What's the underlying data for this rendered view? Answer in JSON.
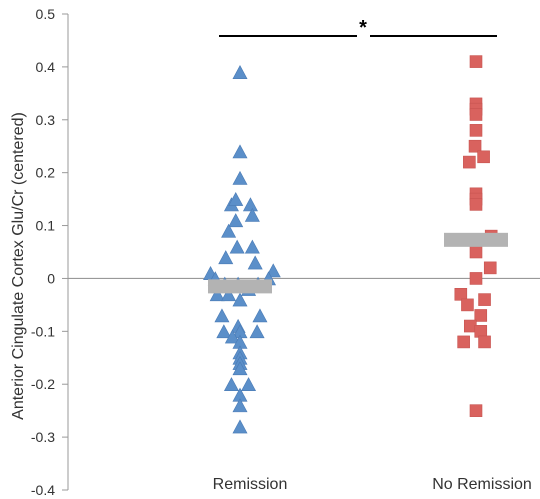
{
  "chart_data": {
    "type": "scatter",
    "ylabel": "Anterior Cingulate Cortex Glu/Cr (centered)",
    "ylim": [
      -0.4,
      0.5
    ],
    "yticks": [
      -0.4,
      -0.3,
      -0.2,
      -0.1,
      0,
      0.1,
      0.2,
      0.3,
      0.4,
      0.5
    ],
    "ytick_labels": [
      "-0.4",
      "-0.3",
      "-0.2",
      "-0.1",
      "0",
      "0.1",
      "0.2",
      "0.3",
      "0.4",
      "0.5"
    ],
    "categories": [
      "Remission",
      "No Remission"
    ],
    "significance": {
      "label": "*",
      "between": [
        "Remission",
        "No Remission"
      ]
    },
    "colors": {
      "remission": "#5b8fc9",
      "no_remission": "#d9625e",
      "mean_bar": "#b3b3b3",
      "axis": "#999999"
    },
    "series": [
      {
        "category": "Remission",
        "marker": "triangle",
        "mean": -0.015,
        "points": [
          {
            "j": 0,
            "y": 0.39
          },
          {
            "j": 0,
            "y": 0.24
          },
          {
            "j": 0,
            "y": 0.19
          },
          {
            "j": -0.9,
            "y": 0.14
          },
          {
            "j": -0.45,
            "y": 0.15
          },
          {
            "j": 1.1,
            "y": 0.14
          },
          {
            "j": 1.3,
            "y": 0.12
          },
          {
            "j": -0.45,
            "y": 0.11
          },
          {
            "j": -1.2,
            "y": 0.09
          },
          {
            "j": -0.3,
            "y": 0.06
          },
          {
            "j": 1.3,
            "y": 0.06
          },
          {
            "j": -1.5,
            "y": 0.04
          },
          {
            "j": 1.6,
            "y": 0.03
          },
          {
            "j": -3.1,
            "y": 0.01
          },
          {
            "j": 3.5,
            "y": 0.015
          },
          {
            "j": -2.6,
            "y": 0.0
          },
          {
            "j": -1.6,
            "y": -0.01
          },
          {
            "j": -0.2,
            "y": -0.01
          },
          {
            "j": 1.9,
            "y": -0.01
          },
          {
            "j": 3.0,
            "y": 0.0
          },
          {
            "j": 0.9,
            "y": -0.02
          },
          {
            "j": -2.4,
            "y": -0.03
          },
          {
            "j": -1.2,
            "y": -0.03
          },
          {
            "j": 0,
            "y": -0.04
          },
          {
            "j": -1.9,
            "y": -0.07
          },
          {
            "j": 2.1,
            "y": -0.07
          },
          {
            "j": -0.2,
            "y": -0.09
          },
          {
            "j": -1.7,
            "y": -0.1
          },
          {
            "j": 0,
            "y": -0.1
          },
          {
            "j": 1.8,
            "y": -0.1
          },
          {
            "j": -0.8,
            "y": -0.11
          },
          {
            "j": 0,
            "y": -0.12
          },
          {
            "j": 0,
            "y": -0.14
          },
          {
            "j": 0,
            "y": -0.15
          },
          {
            "j": 0,
            "y": -0.16
          },
          {
            "j": 0,
            "y": -0.17
          },
          {
            "j": -0.9,
            "y": -0.2
          },
          {
            "j": 0.9,
            "y": -0.2
          },
          {
            "j": 0,
            "y": -0.22
          },
          {
            "j": 0,
            "y": -0.24
          },
          {
            "j": 0,
            "y": -0.28
          }
        ]
      },
      {
        "category": "No Remission",
        "marker": "square",
        "mean": 0.073,
        "points": [
          {
            "j": 0,
            "y": 0.41
          },
          {
            "j": 0,
            "y": 0.33
          },
          {
            "j": 0,
            "y": 0.32
          },
          {
            "j": 0,
            "y": 0.31
          },
          {
            "j": 0,
            "y": 0.28
          },
          {
            "j": -0.1,
            "y": 0.25
          },
          {
            "j": 0.8,
            "y": 0.23
          },
          {
            "j": -0.7,
            "y": 0.22
          },
          {
            "j": 0,
            "y": 0.16
          },
          {
            "j": 0,
            "y": 0.15
          },
          {
            "j": 0,
            "y": 0.14
          },
          {
            "j": 1.6,
            "y": 0.08
          },
          {
            "j": 0,
            "y": 0.05
          },
          {
            "j": 1.5,
            "y": 0.02
          },
          {
            "j": 0,
            "y": 0.0
          },
          {
            "j": -1.6,
            "y": -0.03
          },
          {
            "j": 0.9,
            "y": -0.04
          },
          {
            "j": -0.9,
            "y": -0.05
          },
          {
            "j": 0.5,
            "y": -0.07
          },
          {
            "j": -0.6,
            "y": -0.09
          },
          {
            "j": 0.5,
            "y": -0.1
          },
          {
            "j": -1.3,
            "y": -0.12
          },
          {
            "j": 0.9,
            "y": -0.12
          },
          {
            "j": 0,
            "y": -0.25
          }
        ]
      }
    ]
  }
}
